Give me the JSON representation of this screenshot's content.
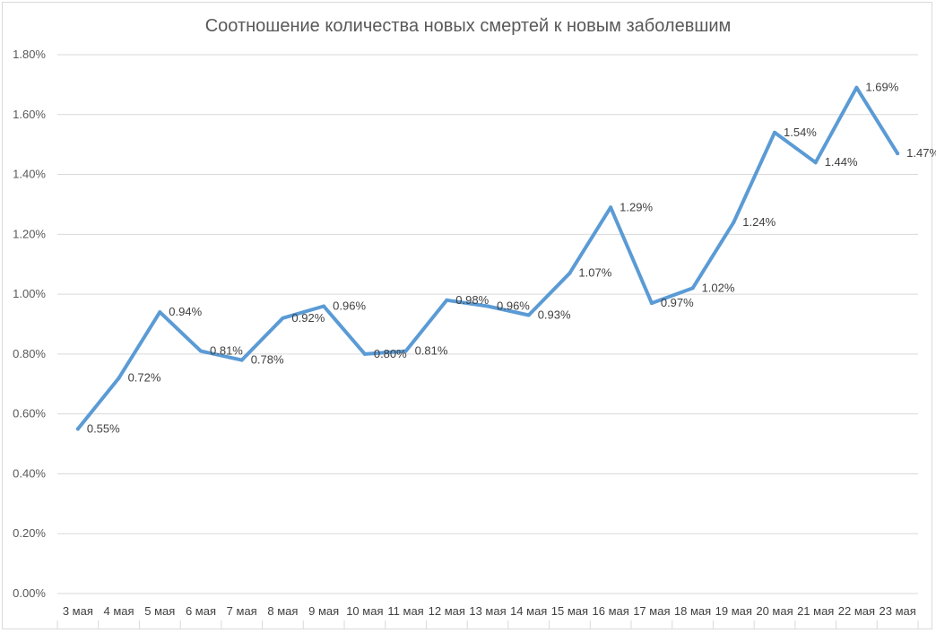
{
  "chart_data": {
    "type": "line",
    "title": "Соотношение количества новых смертей к новым заболевшим",
    "xlabel": "",
    "ylabel": "",
    "categories": [
      "3 мая",
      "4 мая",
      "5 мая",
      "6 мая",
      "7 мая",
      "8 мая",
      "9 мая",
      "10 мая",
      "11 мая",
      "12 мая",
      "13 мая",
      "14 мая",
      "15 мая",
      "16 мая",
      "17 мая",
      "18 мая",
      "19 мая",
      "20 мая",
      "21 мая",
      "22 мая",
      "23 мая"
    ],
    "series": [
      {
        "values": [
          0.55,
          0.72,
          0.94,
          0.81,
          0.78,
          0.92,
          0.96,
          0.8,
          0.81,
          0.98,
          0.96,
          0.93,
          1.07,
          1.29,
          0.97,
          1.02,
          1.24,
          1.54,
          1.44,
          1.69,
          1.47
        ],
        "data_labels": [
          "0.55%",
          "0.72%",
          "0.94%",
          "0.81%",
          "0.78%",
          "0.92%",
          "0.96%",
          "0.80%",
          "0.81%",
          "0.98%",
          "0.96%",
          "0.93%",
          "1.07%",
          "1.29%",
          "0.97%",
          "1.02%",
          "1.24%",
          "1.54%",
          "1.44%",
          "1.69%",
          "1.47%"
        ],
        "color": "#5b9bd5"
      }
    ],
    "ylim": [
      0,
      1.8
    ],
    "yticks": [
      0,
      0.2,
      0.4,
      0.6,
      0.8,
      1.0,
      1.2,
      1.4,
      1.6,
      1.8
    ],
    "ytick_labels": [
      "0.00%",
      "0.20%",
      "0.40%",
      "0.60%",
      "0.80%",
      "1.00%",
      "1.20%",
      "1.40%",
      "1.60%",
      "1.80%"
    ],
    "grid": true,
    "legend": "none"
  }
}
